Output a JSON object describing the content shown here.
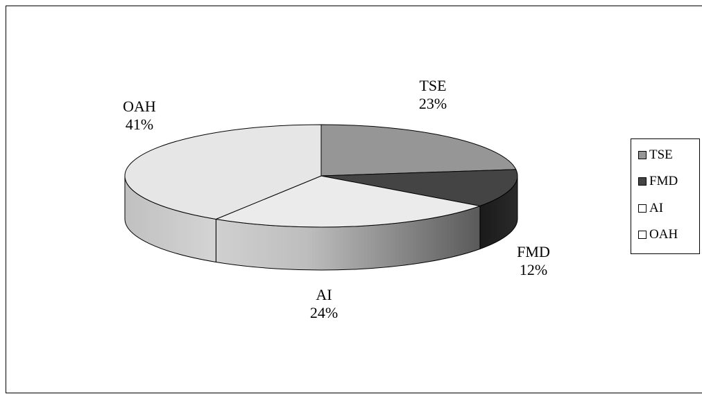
{
  "chart_data": {
    "type": "pie",
    "title": "",
    "categories": [
      "TSE",
      "FMD",
      "AI",
      "OAH"
    ],
    "values": [
      23,
      12,
      24,
      41
    ],
    "unit": "%",
    "data_labels": [
      {
        "name": "TSE",
        "pct": "23%"
      },
      {
        "name": "FMD",
        "pct": "12%"
      },
      {
        "name": "AI",
        "pct": "24%"
      },
      {
        "name": "OAH",
        "pct": "41%"
      }
    ],
    "legend": {
      "placement": "right",
      "entries": [
        "TSE",
        "FMD",
        "AI",
        "OAH"
      ]
    },
    "colors": {
      "TSE": "#969696",
      "FMD": "#444444",
      "AI": "#ebebeb",
      "OAH": "#e6e6e6"
    },
    "style": "3d-pie"
  }
}
